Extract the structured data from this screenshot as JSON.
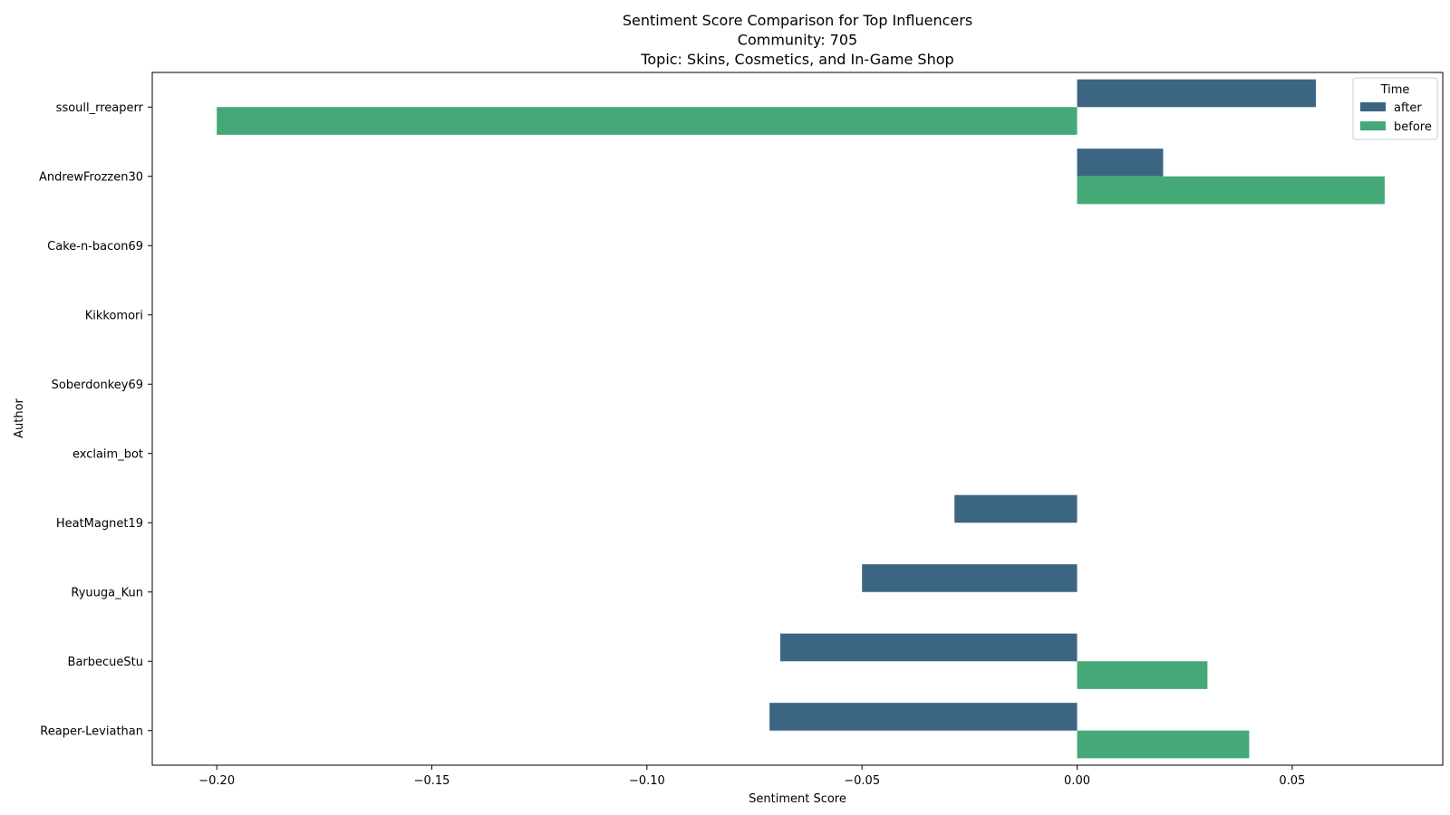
{
  "chart_data": {
    "type": "bar",
    "orientation": "horizontal",
    "title_lines": [
      "Sentiment Score Comparison for Top Influencers",
      "Community: 705",
      "Topic: Skins, Cosmetics, and In-Game Shop"
    ],
    "xlabel": "Sentiment Score",
    "ylabel": "Author",
    "xlim": [
      -0.215,
      0.085
    ],
    "xticks": [
      -0.2,
      -0.15,
      -0.1,
      -0.05,
      0.0,
      0.05
    ],
    "xtick_labels": [
      "−0.20",
      "−0.15",
      "−0.10",
      "−0.05",
      "0.00",
      "0.05"
    ],
    "grid": false,
    "legend_title": "Time",
    "legend_position": "top-right",
    "categories": [
      "ssoull_rreaperr",
      "AndrewFrozzen30",
      "Cake-n-bacon69",
      "Kikkomori",
      "Soberdonkey69",
      "exclaim_bot",
      "HeatMagnet19",
      "Ryuuga_Kun",
      "BarbecueStu",
      "Reaper-Leviathan"
    ],
    "series": [
      {
        "name": "after",
        "color": "#3b6583",
        "values": [
          0.0555,
          0.02,
          null,
          null,
          null,
          null,
          -0.0285,
          -0.05,
          -0.069,
          -0.0715
        ]
      },
      {
        "name": "before",
        "color": "#45a877",
        "values": [
          -0.2,
          0.0715,
          null,
          null,
          null,
          null,
          null,
          null,
          0.0303,
          0.04
        ]
      }
    ]
  }
}
